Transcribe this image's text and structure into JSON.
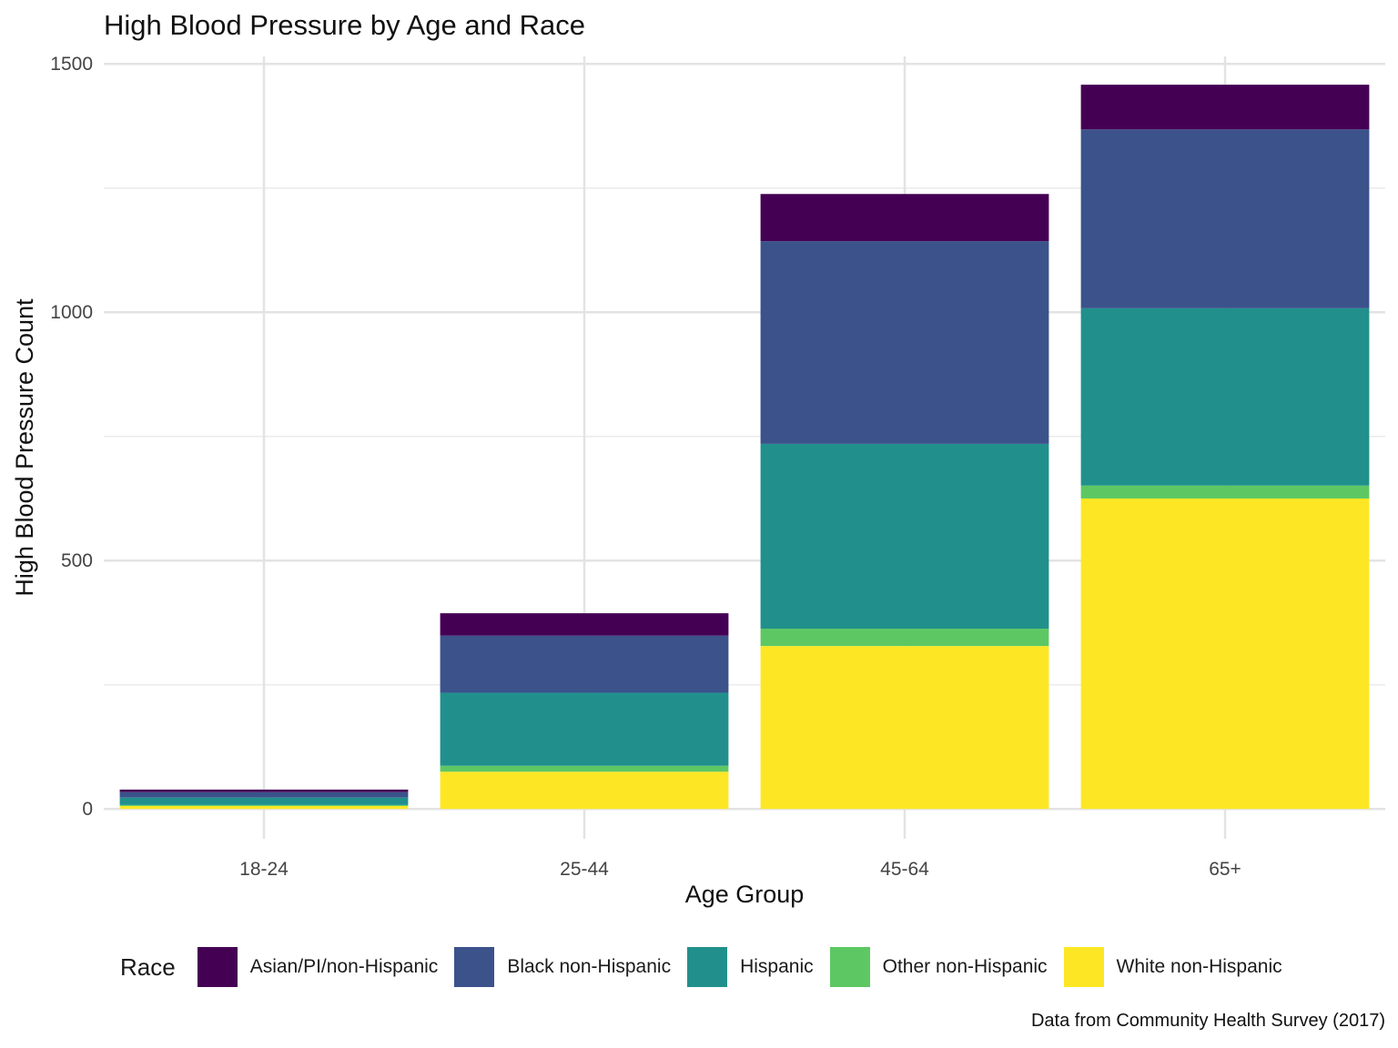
{
  "chart_data": {
    "type": "bar",
    "stacked": true,
    "title": "High Blood Pressure by Age and Race",
    "caption": "Data from Community Health Survey (2017)",
    "xlabel": "Age Group",
    "ylabel": "High Blood Pressure Count",
    "categories": [
      "18-24",
      "25-44",
      "45-64",
      "65+"
    ],
    "ylim": [
      -60,
      1515
    ],
    "yticks": [
      0,
      500,
      1000,
      1500
    ],
    "yticks_minor": [
      250,
      750,
      1250
    ],
    "grid": true,
    "legend_title": "Race",
    "legend_position": "bottom",
    "series": [
      {
        "name": "White non-Hispanic",
        "color": "#FDE725",
        "values": [
          6,
          75,
          328,
          625
        ]
      },
      {
        "name": "Other non-Hispanic",
        "color": "#5DC863",
        "values": [
          2,
          12,
          35,
          26
        ]
      },
      {
        "name": "Hispanic",
        "color": "#21908C",
        "values": [
          15,
          147,
          372,
          357
        ]
      },
      {
        "name": "Black non-Hispanic",
        "color": "#3B528B",
        "values": [
          11,
          115,
          408,
          360
        ]
      },
      {
        "name": "Asian/PI/non-Hispanic",
        "color": "#440154",
        "values": [
          5,
          45,
          95,
          90
        ]
      }
    ],
    "legend_order": [
      "Asian/PI/non-Hispanic",
      "Black non-Hispanic",
      "Hispanic",
      "Other non-Hispanic",
      "White non-Hispanic"
    ]
  }
}
